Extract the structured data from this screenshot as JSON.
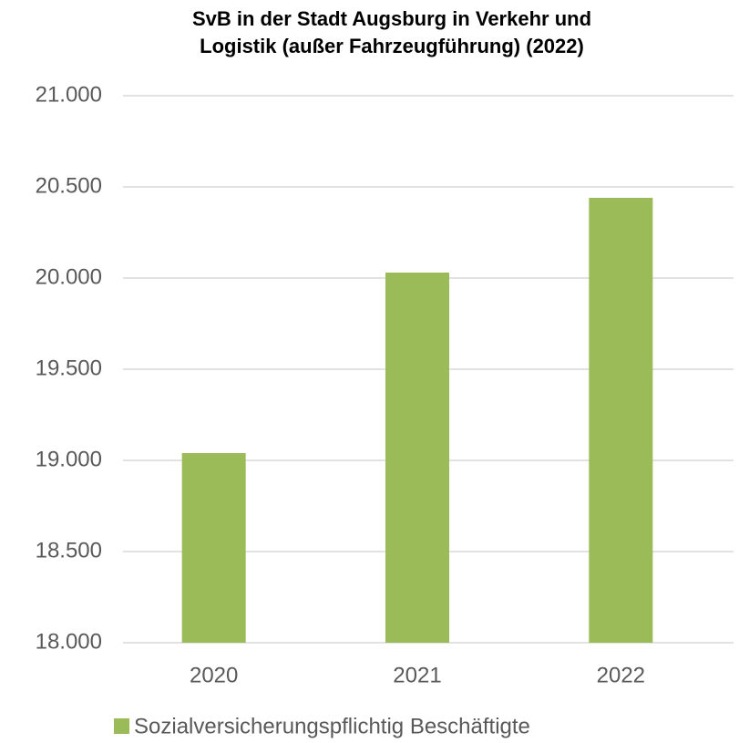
{
  "chart_data": {
    "type": "bar",
    "title": [
      "SvB in der Stadt Augsburg in Verkehr und",
      "Logistik (außer Fahrzeugführung) (2022)"
    ],
    "categories": [
      "2020",
      "2021",
      "2022"
    ],
    "series": [
      {
        "name": "Sozialversicherungspflichtig Beschäftigte",
        "color": "#9bbb59",
        "values": [
          19040,
          20030,
          20440
        ]
      }
    ],
    "ylim": [
      18000,
      21000
    ],
    "yticks": [
      {
        "value": 18000,
        "label": "18.000"
      },
      {
        "value": 18500,
        "label": "18.500"
      },
      {
        "value": 19000,
        "label": "19.000"
      },
      {
        "value": 19500,
        "label": "19.500"
      },
      {
        "value": 20000,
        "label": "20.000"
      },
      {
        "value": 20500,
        "label": "20.500"
      },
      {
        "value": 21000,
        "label": "21.000"
      }
    ],
    "grid": true,
    "legend": "bottom"
  }
}
